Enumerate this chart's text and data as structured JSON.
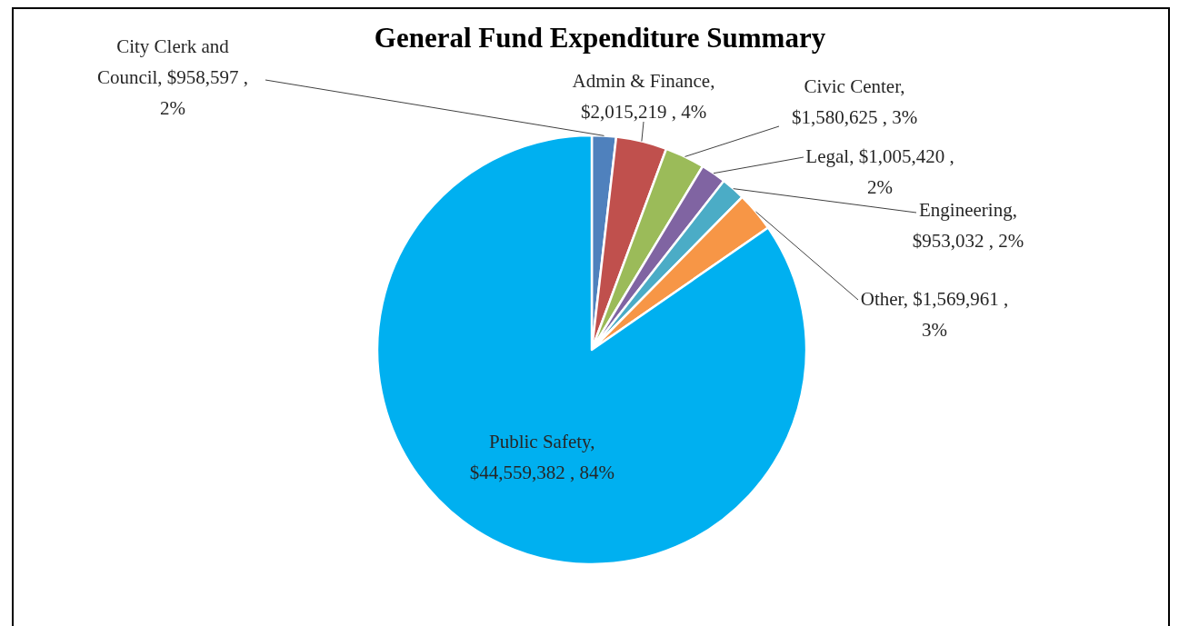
{
  "chart_data": {
    "type": "pie",
    "title": "General Fund Expenditure Summary",
    "categories": [
      "City Clerk and Council",
      "Admin & Finance",
      "Civic Center",
      "Legal",
      "Engineering",
      "Other",
      "Public Safety"
    ],
    "values": [
      958597,
      2015219,
      1580625,
      1005420,
      953032,
      1569961,
      44559382
    ],
    "value_labels": [
      ", $958,597 , 2%",
      ", $2,015,219 , 4%",
      ", $1,580,625 , 3%",
      ", $1,005,420 , 2%",
      ", $953,032 , 2%",
      ", $1,569,961 , 3%",
      ", $44,559,382 , 84%"
    ],
    "colors": [
      "#4f81bd",
      "#c0504d",
      "#9bbb59",
      "#8064a2",
      "#4bacc6",
      "#f79646",
      "#00b0f0"
    ]
  }
}
